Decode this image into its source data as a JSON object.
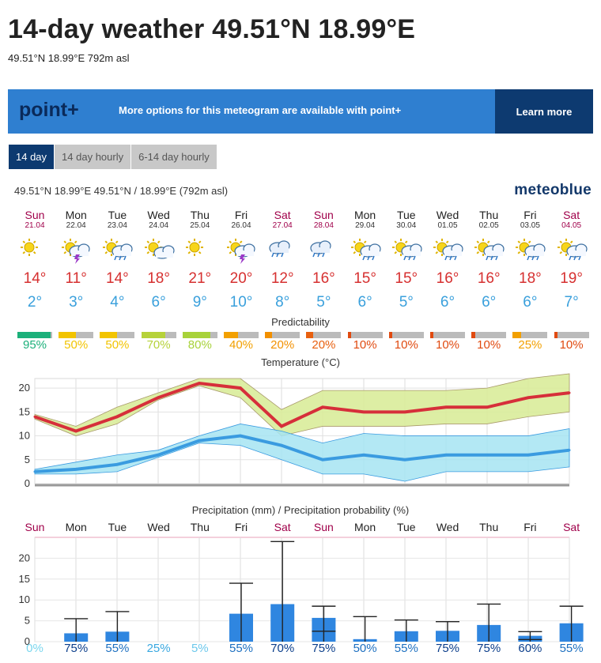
{
  "header": {
    "title": "14-day weather 49.51°N 18.99°E",
    "subtitle": "49.51°N 18.99°E 792m asl"
  },
  "banner": {
    "logo": "point+",
    "message": "More options for this meteogram are available with point+",
    "cta": "Learn more"
  },
  "tabs": [
    {
      "label": "14 day",
      "active": true
    },
    {
      "label": "14 day hourly",
      "active": false
    },
    {
      "label": "6-14 day hourly",
      "active": false
    }
  ],
  "meteogram": {
    "location": "49.51°N 18.99°E  49.51°N / 18.99°E (792m asl)",
    "brand": "meteoblue",
    "days": [
      {
        "name": "Sun",
        "date": "21.04",
        "weekend": true,
        "icon": "sun-icon",
        "tmax": "14°",
        "tmin": "2°",
        "pred": "95%",
        "pred_level": 0.95,
        "pred_color": "#1bb07a",
        "prob": "0%"
      },
      {
        "name": "Mon",
        "date": "22.04",
        "weekend": false,
        "icon": "sun-cloud-thunder-icon",
        "tmax": "11°",
        "tmin": "3°",
        "pred": "50%",
        "pred_level": 0.5,
        "pred_color": "#f2c400",
        "prob": "75%"
      },
      {
        "name": "Tue",
        "date": "23.04",
        "weekend": false,
        "icon": "sun-cloud-rain-icon",
        "tmax": "14°",
        "tmin": "4°",
        "pred": "50%",
        "pred_level": 0.5,
        "pred_color": "#f2c400",
        "prob": "55%"
      },
      {
        "name": "Wed",
        "date": "24.04",
        "weekend": false,
        "icon": "sun-cloud-icon",
        "tmax": "18°",
        "tmin": "6°",
        "pred": "70%",
        "pred_level": 0.7,
        "pred_color": "#b6d23a",
        "prob": "25%"
      },
      {
        "name": "Thu",
        "date": "25.04",
        "weekend": false,
        "icon": "sun-icon",
        "tmax": "21°",
        "tmin": "9°",
        "pred": "80%",
        "pred_level": 0.8,
        "pred_color": "#a8d23a",
        "prob": "5%"
      },
      {
        "name": "Fri",
        "date": "26.04",
        "weekend": false,
        "icon": "sun-cloud-thunder-icon",
        "tmax": "20°",
        "tmin": "10°",
        "pred": "40%",
        "pred_level": 0.4,
        "pred_color": "#f2a000",
        "prob": "55%"
      },
      {
        "name": "Sat",
        "date": "27.04",
        "weekend": true,
        "icon": "cloud-rain-icon",
        "tmax": "12°",
        "tmin": "8°",
        "pred": "20%",
        "pred_level": 0.2,
        "pred_color": "#f29000",
        "prob": "70%"
      },
      {
        "name": "Sun",
        "date": "28.04",
        "weekend": true,
        "icon": "cloud-rain-icon",
        "tmax": "16°",
        "tmin": "5°",
        "pred": "20%",
        "pred_level": 0.2,
        "pred_color": "#e86010",
        "prob": "75%"
      },
      {
        "name": "Mon",
        "date": "29.04",
        "weekend": false,
        "icon": "sun-cloud-rain-icon",
        "tmax": "15°",
        "tmin": "6°",
        "pred": "10%",
        "pred_level": 0.1,
        "pred_color": "#e04a10",
        "prob": "50%"
      },
      {
        "name": "Tue",
        "date": "30.04",
        "weekend": false,
        "icon": "sun-cloud-rain-icon",
        "tmax": "15°",
        "tmin": "5°",
        "pred": "10%",
        "pred_level": 0.1,
        "pred_color": "#e04a10",
        "prob": "55%"
      },
      {
        "name": "Wed",
        "date": "01.05",
        "weekend": false,
        "icon": "sun-cloud-rain-icon",
        "tmax": "16°",
        "tmin": "6°",
        "pred": "10%",
        "pred_level": 0.1,
        "pred_color": "#e04a10",
        "prob": "75%"
      },
      {
        "name": "Thu",
        "date": "02.05",
        "weekend": false,
        "icon": "sun-cloud-rain-icon",
        "tmax": "16°",
        "tmin": "6°",
        "pred": "10%",
        "pred_level": 0.1,
        "pred_color": "#e04a10",
        "prob": "75%"
      },
      {
        "name": "Fri",
        "date": "03.05",
        "weekend": false,
        "icon": "sun-cloud-rain-icon",
        "tmax": "18°",
        "tmin": "6°",
        "pred": "25%",
        "pred_level": 0.25,
        "pred_color": "#f2a000",
        "prob": "60%"
      },
      {
        "name": "Sat",
        "date": "04.05",
        "weekend": true,
        "icon": "sun-cloud-rain-icon",
        "tmax": "19°",
        "tmin": "7°",
        "pred": "10%",
        "pred_level": 0.1,
        "pred_color": "#e04a10",
        "prob": "55%"
      }
    ],
    "predictability_label": "Predictability",
    "temperature_label": "Temperature (°C)",
    "precip_label": "Precipitation (mm) / Precipitation probability (%)"
  },
  "chart_data": [
    {
      "type": "line",
      "title": "Temperature (°C)",
      "ylim": [
        0,
        22
      ],
      "yticks": [
        0,
        5,
        10,
        15,
        20
      ],
      "series": [
        {
          "values": [
            14,
            11,
            14,
            18,
            21,
            20,
            12,
            16,
            15,
            15,
            16,
            16,
            18,
            19
          ],
          "color": "#d62f3a",
          "band_low": [
            13.5,
            10,
            12.5,
            17.5,
            20.5,
            18,
            10,
            12,
            12,
            12,
            12.5,
            12.5,
            14,
            15
          ],
          "band_high": [
            14.5,
            12,
            16,
            19,
            22,
            22,
            15.5,
            19.5,
            19.5,
            19.5,
            19.5,
            20,
            22,
            23
          ]
        },
        {
          "values": [
            2.5,
            3,
            4,
            6,
            9,
            10,
            8,
            5,
            6,
            5,
            6,
            6,
            6,
            7
          ],
          "color": "#3a9be0",
          "band_low": [
            2,
            2,
            2.5,
            5.5,
            8.5,
            8,
            5,
            2,
            2,
            0.5,
            2.5,
            2.5,
            2.5,
            3.5
          ],
          "band_high": [
            3,
            4.5,
            6,
            7,
            10,
            12.5,
            11,
            8.5,
            10.5,
            10,
            10,
            10,
            10,
            11.5
          ]
        }
      ]
    },
    {
      "type": "bar",
      "title": "Precipitation (mm) / Precipitation probability (%)",
      "categories": [
        "Sun",
        "Mon",
        "Tue",
        "Wed",
        "Thu",
        "Fri",
        "Sat",
        "Sun",
        "Mon",
        "Tue",
        "Wed",
        "Thu",
        "Fri",
        "Sat"
      ],
      "values": [
        0,
        2,
        2.4,
        0,
        0,
        6.7,
        9,
        5.7,
        0.6,
        2.5,
        2.6,
        4,
        1.4,
        4.4
      ],
      "error_low": [
        0,
        0,
        0,
        0,
        0,
        0,
        0,
        2.5,
        0,
        0,
        0,
        0,
        0.5,
        0
      ],
      "error_high": [
        0,
        5.5,
        7.2,
        0,
        0,
        14,
        24,
        8.5,
        6,
        5.2,
        4.8,
        9,
        2.4,
        8.5
      ],
      "ylim": [
        0,
        25
      ],
      "yticks": [
        0,
        5,
        10,
        15,
        20
      ],
      "probabilities": [
        "0%",
        "75%",
        "55%",
        "25%",
        "5%",
        "55%",
        "70%",
        "75%",
        "50%",
        "55%",
        "75%",
        "75%",
        "60%",
        "55%"
      ]
    }
  ]
}
